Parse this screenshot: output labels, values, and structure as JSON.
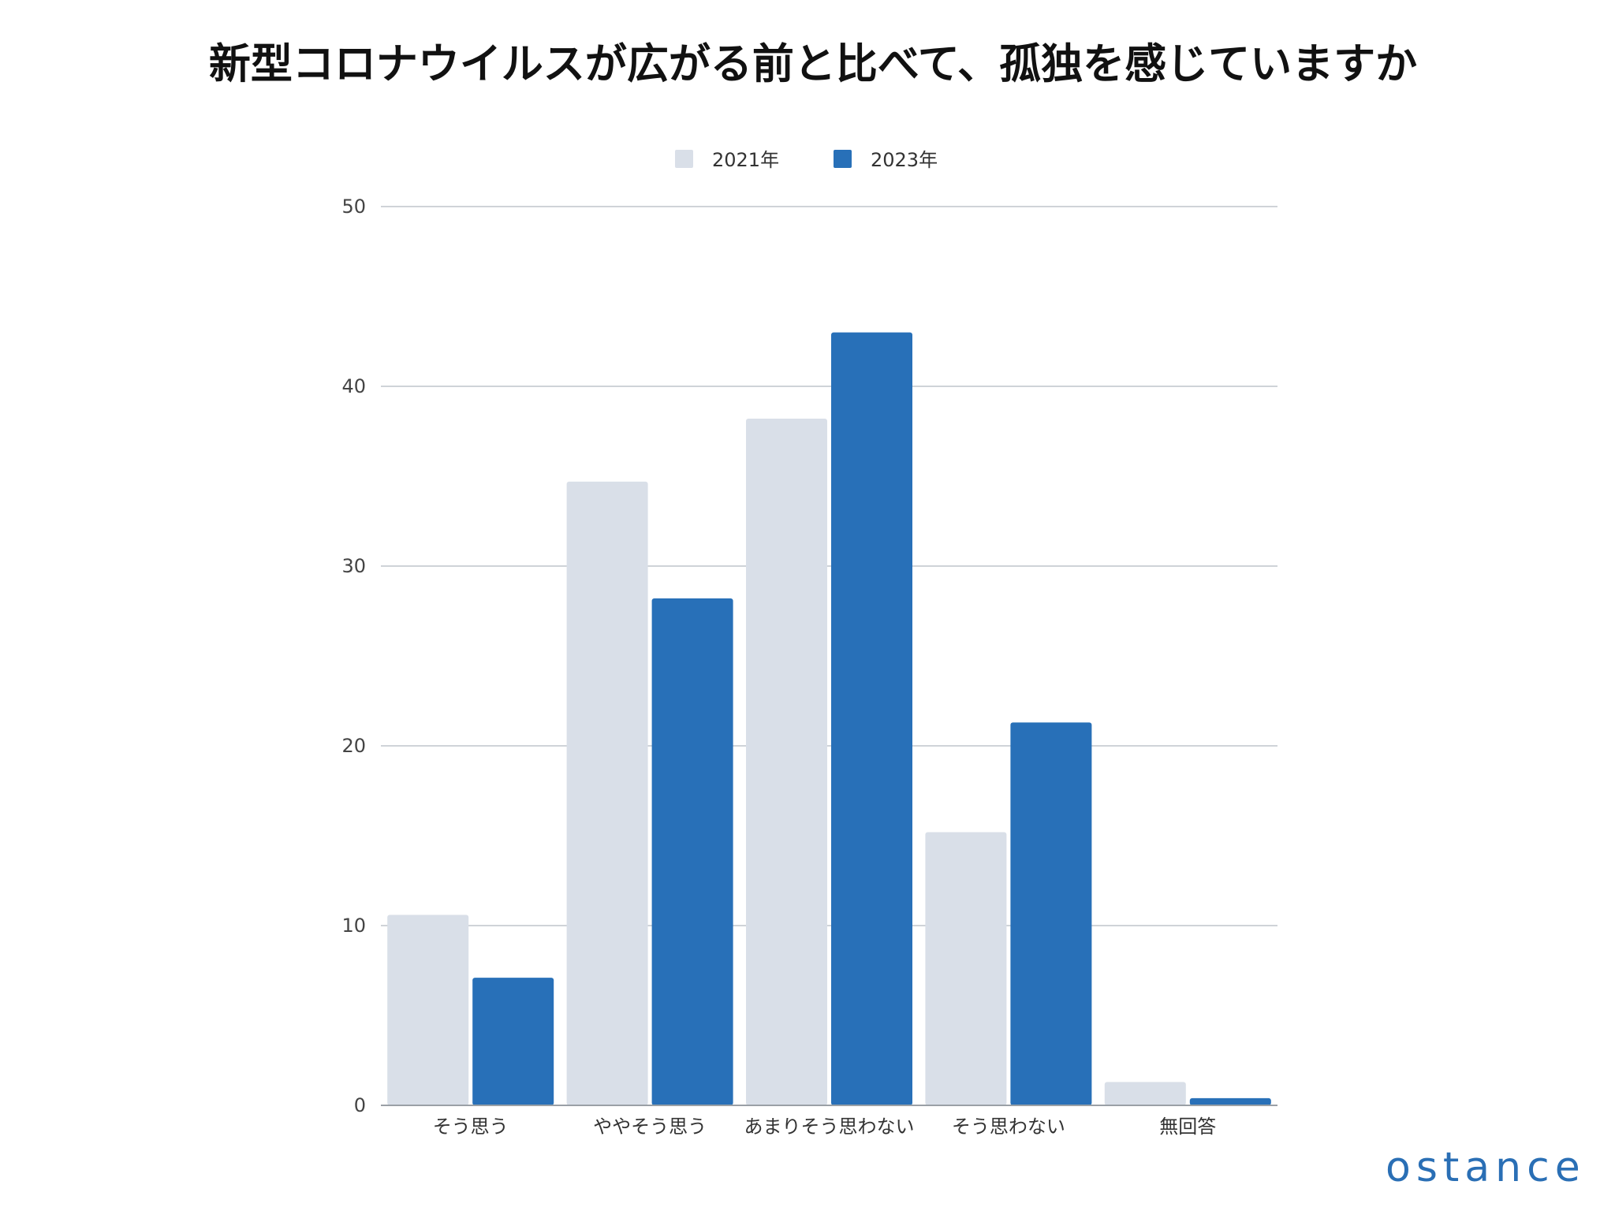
{
  "chart_data": {
    "type": "bar",
    "title": "新型コロナウイルスが広がる前と比べて、孤独を感じていますか",
    "xlabel": "",
    "ylabel": "",
    "ylim": [
      0,
      50
    ],
    "yticks": [
      0,
      10,
      20,
      30,
      40,
      50
    ],
    "grid": true,
    "legend_position": "top-center",
    "categories": [
      "そう思う",
      "ややそう思う",
      "あまりそう思わない",
      "そう思わない",
      "無回答"
    ],
    "series": [
      {
        "name": "2021年",
        "color": "#d9dfe8",
        "values": [
          10.6,
          34.7,
          38.2,
          15.2,
          1.3
        ]
      },
      {
        "name": "2023年",
        "color": "#2870b8",
        "values": [
          7.1,
          28.2,
          43.0,
          21.3,
          0.4
        ]
      }
    ]
  },
  "branding": {
    "logo_text": "ostance",
    "color": "#2a6fb5"
  }
}
